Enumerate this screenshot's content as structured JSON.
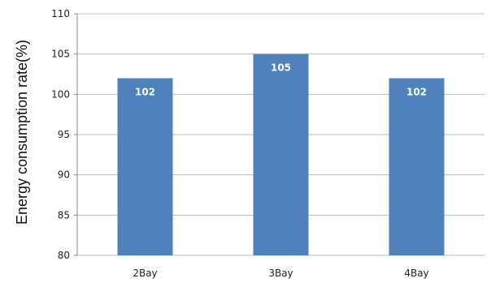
{
  "chart_data": {
    "type": "bar",
    "title": "",
    "xlabel": "",
    "ylabel": "Energy consumption rate(%)",
    "categories": [
      "2Bay",
      "3Bay",
      "4Bay"
    ],
    "values": [
      102,
      105,
      102
    ],
    "data_labels": [
      "102",
      "105",
      "102"
    ],
    "ylim": [
      80,
      110
    ],
    "yticks": [
      80,
      85,
      90,
      95,
      100,
      105,
      110
    ],
    "ytick_labels": [
      "80",
      "85",
      "90",
      "95",
      "100",
      "105",
      "110"
    ],
    "grid": true,
    "legend": "none",
    "bar_color": "#4f81bd",
    "grid_color": "#bdbdbd"
  }
}
